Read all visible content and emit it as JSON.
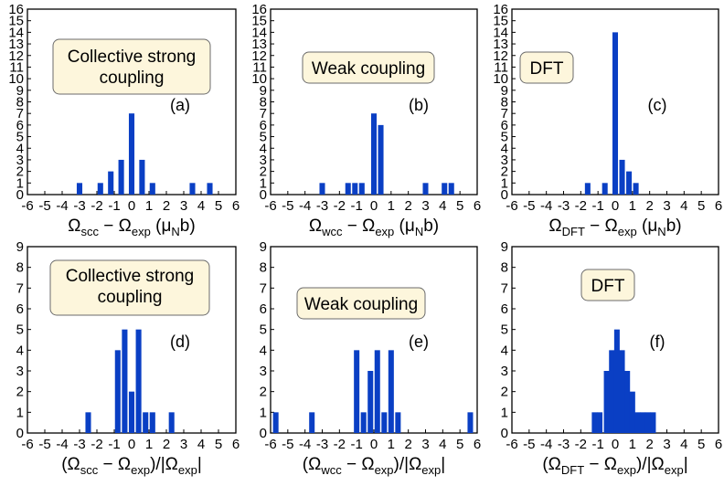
{
  "chart_data": [
    {
      "type": "bar",
      "panel": "(a)",
      "annotation": [
        "Collective strong",
        "coupling"
      ],
      "xlabel": [
        [
          "Ω",
          ""
        ],
        [
          "scc",
          "sub"
        ],
        [
          " − Ω",
          ""
        ],
        [
          "exp",
          "sub"
        ],
        [
          " (μ",
          ""
        ],
        [
          "N",
          "sub"
        ],
        [
          "b)",
          ""
        ]
      ],
      "xlim": [
        -6,
        6
      ],
      "ylim": [
        0,
        16
      ],
      "xticks": [
        "-6",
        "-5",
        "-4",
        "-3",
        "-2",
        "-1",
        "0",
        "1",
        "2",
        "3",
        "4",
        "5",
        "6"
      ],
      "yticks": [
        "0",
        "1",
        "2",
        "3",
        "4",
        "5",
        "6",
        "7",
        "8",
        "9",
        "10",
        "11",
        "12",
        "13",
        "14",
        "15",
        "16"
      ],
      "bin_width": 0.32,
      "bins": [
        [
          -3.0,
          1
        ],
        [
          -1.8,
          1
        ],
        [
          -1.2,
          2
        ],
        [
          -0.6,
          3
        ],
        [
          0.0,
          7
        ],
        [
          0.6,
          3
        ],
        [
          1.2,
          1
        ],
        [
          3.5,
          1
        ],
        [
          4.5,
          1
        ]
      ]
    },
    {
      "type": "bar",
      "panel": "(b)",
      "annotation": [
        "Weak coupling"
      ],
      "xlabel": [
        [
          "Ω",
          ""
        ],
        [
          "wcc",
          "sub"
        ],
        [
          " − Ω",
          ""
        ],
        [
          "exp",
          "sub"
        ],
        [
          " (μ",
          ""
        ],
        [
          "N",
          "sub"
        ],
        [
          "b)",
          ""
        ]
      ],
      "xlim": [
        -6,
        6
      ],
      "ylim": [
        0,
        16
      ],
      "xticks": [
        "-6",
        "-5",
        "-4",
        "-3",
        "-2",
        "-1",
        "0",
        "1",
        "2",
        "3",
        "4",
        "5",
        "6"
      ],
      "yticks": [
        "0",
        "1",
        "2",
        "3",
        "4",
        "5",
        "6",
        "7",
        "8",
        "9",
        "10",
        "11",
        "12",
        "13",
        "14",
        "15",
        "16"
      ],
      "bin_width": 0.32,
      "bins": [
        [
          -3.0,
          1
        ],
        [
          -1.5,
          1
        ],
        [
          -1.1,
          1
        ],
        [
          -0.7,
          1
        ],
        [
          0.0,
          7
        ],
        [
          0.4,
          6
        ],
        [
          3.0,
          1
        ],
        [
          4.1,
          1
        ],
        [
          4.5,
          1
        ]
      ]
    },
    {
      "type": "bar",
      "panel": "(c)",
      "annotation": [
        "DFT"
      ],
      "xlabel": [
        [
          "Ω",
          ""
        ],
        [
          "DFT",
          "sub"
        ],
        [
          " − Ω",
          ""
        ],
        [
          "exp",
          "sub"
        ],
        [
          " (μ",
          ""
        ],
        [
          "N",
          "sub"
        ],
        [
          "b)",
          ""
        ]
      ],
      "xlim": [
        -6,
        6
      ],
      "ylim": [
        0,
        16
      ],
      "xticks": [
        "-6",
        "-5",
        "-4",
        "-3",
        "-2",
        "-1",
        "0",
        "1",
        "2",
        "3",
        "4",
        "5",
        "6"
      ],
      "yticks": [
        "0",
        "1",
        "2",
        "3",
        "4",
        "5",
        "6",
        "7",
        "8",
        "9",
        "10",
        "11",
        "12",
        "13",
        "14",
        "15",
        "16"
      ],
      "bin_width": 0.32,
      "bins": [
        [
          -1.6,
          1
        ],
        [
          -0.6,
          1
        ],
        [
          0.0,
          14
        ],
        [
          0.4,
          3
        ],
        [
          0.8,
          2
        ],
        [
          1.2,
          1
        ]
      ]
    },
    {
      "type": "bar",
      "panel": "(d)",
      "annotation": [
        "Collective strong",
        "coupling"
      ],
      "xlabel": [
        [
          "(Ω",
          ""
        ],
        [
          "scc",
          "sub"
        ],
        [
          " − Ω",
          ""
        ],
        [
          "exp",
          "sub"
        ],
        [
          ")/|Ω",
          ""
        ],
        [
          "exp",
          "sub"
        ],
        [
          "|",
          ""
        ]
      ],
      "xlim": [
        -6,
        6
      ],
      "ylim": [
        0,
        9
      ],
      "xticks": [
        "-6",
        "-5",
        "-4",
        "-3",
        "-2",
        "-1",
        "0",
        "1",
        "2",
        "3",
        "4",
        "5",
        "6"
      ],
      "yticks": [
        "0",
        "1",
        "2",
        "3",
        "4",
        "5",
        "6",
        "7",
        "8",
        "9"
      ],
      "bin_width": 0.32,
      "bins": [
        [
          -2.5,
          1
        ],
        [
          -0.8,
          4
        ],
        [
          -0.4,
          5
        ],
        [
          0.0,
          2
        ],
        [
          0.4,
          5
        ],
        [
          0.8,
          1
        ],
        [
          1.2,
          1
        ],
        [
          2.3,
          1
        ]
      ]
    },
    {
      "type": "bar",
      "panel": "(e)",
      "annotation": [
        "Weak coupling"
      ],
      "xlabel": [
        [
          "(Ω",
          ""
        ],
        [
          "wcc",
          "sub"
        ],
        [
          " − Ω",
          ""
        ],
        [
          "exp",
          "sub"
        ],
        [
          ")/|Ω",
          ""
        ],
        [
          "exp",
          "sub"
        ],
        [
          "|",
          ""
        ]
      ],
      "xlim": [
        -6,
        6
      ],
      "ylim": [
        0,
        9
      ],
      "xticks": [
        "-6",
        "-5",
        "-4",
        "-3",
        "-2",
        "-1",
        "0",
        "1",
        "2",
        "3",
        "4",
        "5",
        "6"
      ],
      "yticks": [
        "0",
        "1",
        "2",
        "3",
        "4",
        "5",
        "6",
        "7",
        "8",
        "9"
      ],
      "bin_width": 0.32,
      "bins": [
        [
          -5.7,
          1
        ],
        [
          -3.6,
          1
        ],
        [
          -1.0,
          4
        ],
        [
          -0.6,
          1
        ],
        [
          -0.2,
          3
        ],
        [
          0.2,
          4
        ],
        [
          0.6,
          1
        ],
        [
          1.0,
          4
        ],
        [
          1.4,
          1
        ],
        [
          5.6,
          1
        ]
      ]
    },
    {
      "type": "bar",
      "panel": "(f)",
      "annotation": [
        "DFT"
      ],
      "xlabel": [
        [
          "(Ω",
          ""
        ],
        [
          "DFT",
          "sub"
        ],
        [
          " − Ω",
          ""
        ],
        [
          "exp",
          "sub"
        ],
        [
          ")/|Ω",
          ""
        ],
        [
          "exp",
          "sub"
        ],
        [
          "|",
          ""
        ]
      ],
      "xlim": [
        -6,
        6
      ],
      "ylim": [
        0,
        9
      ],
      "xticks": [
        "-6",
        "-5",
        "-4",
        "-3",
        "-2",
        "-1",
        "0",
        "1",
        "2",
        "3",
        "4",
        "5",
        "6"
      ],
      "yticks": [
        "0",
        "1",
        "2",
        "3",
        "4",
        "5",
        "6",
        "7",
        "8",
        "9"
      ],
      "bin_width": 0.32,
      "bins": [
        [
          -1.2,
          1
        ],
        [
          -0.9,
          1
        ],
        [
          -0.5,
          3
        ],
        [
          -0.2,
          4
        ],
        [
          0.1,
          5
        ],
        [
          0.4,
          4
        ],
        [
          0.7,
          3
        ],
        [
          1.0,
          2
        ],
        [
          1.3,
          1
        ],
        [
          1.6,
          1
        ],
        [
          1.9,
          1
        ],
        [
          2.2,
          1
        ]
      ]
    }
  ],
  "colors": {
    "bar": "#0a3fc4",
    "annotation_fill": "#fdf6dc",
    "annotation_stroke": "#6b6b6b",
    "axis": "#000000",
    "background": "#ffffff"
  }
}
